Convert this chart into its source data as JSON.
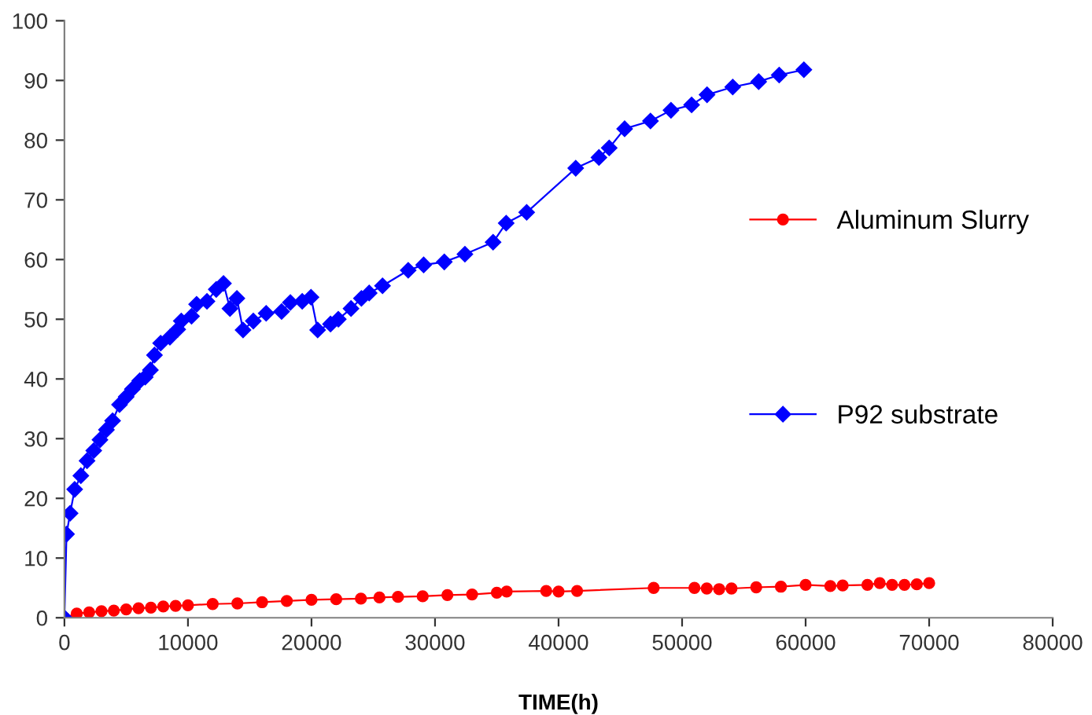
{
  "chart_data": {
    "type": "line",
    "xlabel": "TIME(h)",
    "xlim": [
      0,
      80000
    ],
    "ylim": [
      0,
      100
    ],
    "xticks": [
      0,
      10000,
      20000,
      30000,
      40000,
      50000,
      60000,
      70000,
      80000
    ],
    "yticks": [
      0,
      10,
      20,
      30,
      40,
      50,
      60,
      70,
      80,
      90,
      100
    ],
    "grid": false,
    "legend": "right",
    "series": [
      {
        "name": "Aluminum Slurry",
        "color": "#ff0000",
        "marker": "circle",
        "x": [
          0,
          1000,
          2000,
          3000,
          4000,
          5000,
          6000,
          7000,
          8000,
          9000,
          10000,
          12000,
          14000,
          16000,
          18000,
          20000,
          22000,
          24000,
          25500,
          27000,
          29000,
          31000,
          33000,
          35000,
          35800,
          39000,
          40000,
          41500,
          47700,
          51000,
          52000,
          53000,
          54000,
          56000,
          58000,
          60000,
          62000,
          63000,
          65000,
          66000,
          67000,
          68000,
          69000,
          70000
        ],
        "values": [
          0,
          0.7,
          0.9,
          1.1,
          1.2,
          1.4,
          1.6,
          1.7,
          1.9,
          2.0,
          2.1,
          2.3,
          2.4,
          2.6,
          2.8,
          3.0,
          3.1,
          3.2,
          3.4,
          3.5,
          3.6,
          3.8,
          3.9,
          4.2,
          4.4,
          4.5,
          4.4,
          4.5,
          5.0,
          5.0,
          4.9,
          4.8,
          4.9,
          5.1,
          5.2,
          5.5,
          5.3,
          5.4,
          5.5,
          5.8,
          5.5,
          5.5,
          5.6,
          5.8
        ]
      },
      {
        "name": "P92 substrate",
        "color": "#0000ff",
        "marker": "diamond",
        "x": [
          0,
          170,
          460,
          830,
          1330,
          1830,
          2375,
          2875,
          3400,
          3900,
          4460,
          5000,
          5500,
          6100,
          6540,
          6960,
          7290,
          7790,
          8540,
          9170,
          9460,
          10290,
          10700,
          11540,
          12290,
          12875,
          13400,
          13960,
          14460,
          15290,
          16330,
          17580,
          18290,
          19250,
          19960,
          20500,
          21540,
          22170,
          23200,
          24040,
          24670,
          25750,
          27830,
          29080,
          30750,
          32420,
          34700,
          35760,
          37420,
          41390,
          43270,
          44100,
          45350,
          47440,
          49100,
          50770,
          52020,
          54100,
          56200,
          57860,
          59860
        ],
        "values": [
          0,
          14,
          17.5,
          21.5,
          23.8,
          26.3,
          28,
          29.8,
          31.5,
          33,
          35.7,
          37,
          38.3,
          39.7,
          40.3,
          41.5,
          44,
          46,
          47,
          48.3,
          49.7,
          50.5,
          52.5,
          53,
          55,
          56,
          51.8,
          53.5,
          48.2,
          49.7,
          51,
          51.3,
          52.8,
          53,
          53.7,
          48.2,
          49.2,
          50,
          51.8,
          53.5,
          54.4,
          55.6,
          58.2,
          59.1,
          59.6,
          60.9,
          62.9,
          66.1,
          67.9,
          75.3,
          77.1,
          78.7,
          81.9,
          83.2,
          85,
          85.9,
          87.6,
          88.9,
          89.8,
          90.9,
          91.8
        ]
      }
    ]
  }
}
